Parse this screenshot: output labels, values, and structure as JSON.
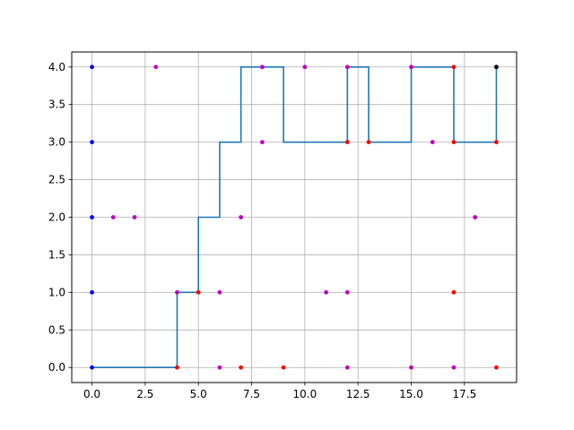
{
  "chart_data": {
    "type": "line",
    "title": "",
    "xlabel": "",
    "ylabel": "",
    "xlim": [
      -0.95,
      19.95
    ],
    "ylim": [
      -0.2,
      4.2
    ],
    "grid": true,
    "xticks": [
      0,
      2.5,
      5,
      7.5,
      10,
      12.5,
      15,
      17.5
    ],
    "xtick_labels": [
      "0.0",
      "2.5",
      "5.0",
      "7.5",
      "10.0",
      "12.5",
      "15.0",
      "17.5"
    ],
    "yticks": [
      0,
      0.5,
      1,
      1.5,
      2,
      2.5,
      3,
      3.5,
      4
    ],
    "ytick_labels": [
      "0.0",
      "0.5",
      "1.0",
      "1.5",
      "2.0",
      "2.5",
      "3.0",
      "3.5",
      "4.0"
    ],
    "step_line": {
      "color": "#1f77b4",
      "points": [
        [
          0,
          0
        ],
        [
          4,
          0
        ],
        [
          4,
          1
        ],
        [
          5,
          1
        ],
        [
          5,
          2
        ],
        [
          6,
          2
        ],
        [
          6,
          3
        ],
        [
          7,
          3
        ],
        [
          7,
          4
        ],
        [
          9,
          4
        ],
        [
          9,
          3
        ],
        [
          12,
          3
        ],
        [
          12,
          4
        ],
        [
          13,
          4
        ],
        [
          13,
          3
        ],
        [
          15,
          3
        ],
        [
          15,
          4
        ],
        [
          17,
          4
        ],
        [
          17,
          3
        ],
        [
          19,
          3
        ],
        [
          19,
          4
        ]
      ]
    },
    "scatter_series": [
      {
        "color": "#0000ff",
        "points": [
          [
            0,
            0
          ],
          [
            0,
            1
          ],
          [
            0,
            2
          ],
          [
            0,
            3
          ],
          [
            0,
            4
          ]
        ]
      },
      {
        "color": "#bf00bf",
        "points": [
          [
            1,
            2
          ],
          [
            2,
            2
          ],
          [
            3,
            4
          ],
          [
            4,
            1
          ],
          [
            6,
            1
          ],
          [
            6,
            0
          ],
          [
            7,
            2
          ],
          [
            8,
            3
          ],
          [
            8,
            4
          ],
          [
            10,
            4
          ],
          [
            11,
            1
          ],
          [
            12,
            1
          ],
          [
            12,
            0
          ],
          [
            12,
            4
          ],
          [
            15,
            0
          ],
          [
            15,
            4
          ],
          [
            16,
            3
          ],
          [
            17,
            0
          ],
          [
            18,
            2
          ]
        ]
      },
      {
        "color": "#ff0000",
        "points": [
          [
            4,
            0
          ],
          [
            5,
            1
          ],
          [
            7,
            0
          ],
          [
            9,
            0
          ],
          [
            12,
            3
          ],
          [
            13,
            3
          ],
          [
            17,
            1
          ],
          [
            17,
            3
          ],
          [
            17,
            4
          ],
          [
            19,
            0
          ],
          [
            19,
            3
          ]
        ]
      },
      {
        "color": "#000000",
        "points": [
          [
            19,
            4
          ]
        ]
      }
    ]
  }
}
